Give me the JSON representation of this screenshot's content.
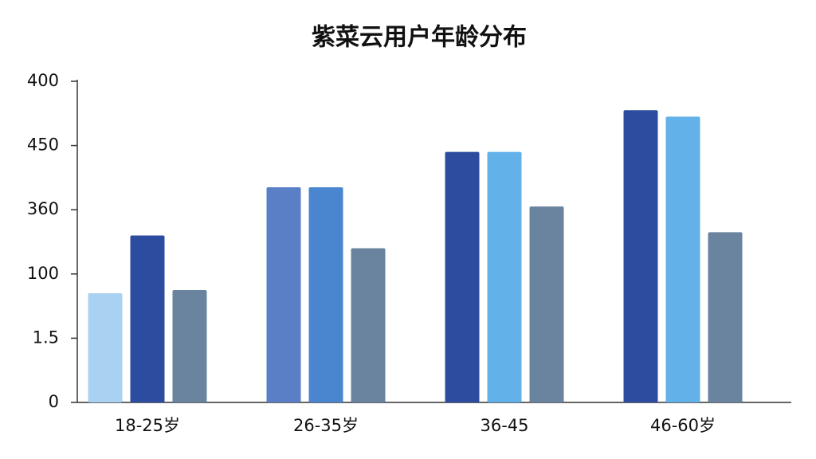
{
  "chart_data": {
    "type": "bar",
    "title": "紫菜云用户年龄分布",
    "categories": [
      "18-25岁",
      "26-35岁",
      "36-45",
      "46-60岁"
    ],
    "ylim": [
      0,
      5
    ],
    "yticks": [
      {
        "value": 0,
        "label": "0"
      },
      {
        "value": 1,
        "label": "1.5"
      },
      {
        "value": 2,
        "label": "100"
      },
      {
        "value": 3,
        "label": "360"
      },
      {
        "value": 4,
        "label": "450"
      },
      {
        "value": 5,
        "label": "400"
      }
    ],
    "series": [
      {
        "colors": [
          "#a9d1f1",
          "#5b7fc6",
          "#2c4c9f",
          "#2c4c9f"
        ],
        "values": [
          1.7,
          3.35,
          3.9,
          4.55
        ]
      },
      {
        "colors": [
          "#2c4c9f",
          "#4a86cf",
          "#63b1e9",
          "#63b1e9"
        ],
        "values": [
          2.6,
          3.35,
          3.9,
          4.45
        ]
      },
      {
        "colors": [
          "#6a84a0",
          "#6a84a0",
          "#6a84a0",
          "#6a84a0"
        ],
        "values": [
          1.75,
          2.4,
          3.05,
          2.65
        ]
      }
    ]
  }
}
